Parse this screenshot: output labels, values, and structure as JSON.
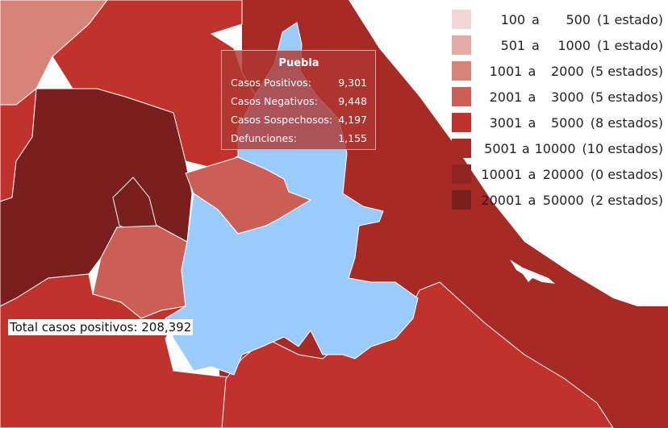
{
  "legend": [
    {
      "lo": "100",
      "hi": "500",
      "count": "(1 estado)",
      "color": "#f2d6d5"
    },
    {
      "lo": "501",
      "hi": "1000",
      "count": "(1 estado)",
      "color": "#e4aaa6"
    },
    {
      "lo": "1001",
      "hi": "2000",
      "count": "(5 estados)",
      "color": "#d88378"
    },
    {
      "lo": "2001",
      "hi": "3000",
      "count": "(5 estados)",
      "color": "#cc5f55"
    },
    {
      "lo": "3001",
      "hi": "5000",
      "count": "(8 estados)",
      "color": "#c1322c"
    },
    {
      "lo": "5001",
      "hi": "10000",
      "count": "(10 estados)",
      "color": "#a82a25"
    },
    {
      "lo": "10001",
      "hi": "20000",
      "count": "(0 estados)",
      "color": "#8f2420"
    },
    {
      "lo": "20001",
      "hi": "50000",
      "count": "(2 estados)",
      "color": "#7a1f1d"
    }
  ],
  "legend_connector": "a",
  "tooltip": {
    "title": "Puebla",
    "rows": [
      {
        "label": "Casos Positivos:",
        "value": "9,301"
      },
      {
        "label": "Casos Negativos:",
        "value": "9,448"
      },
      {
        "label": "Casos Sospechosos:",
        "value": "4,197"
      },
      {
        "label": "Defunciones:",
        "value": "1,155"
      }
    ]
  },
  "total": "Total casos positivos: 208,392",
  "colors": {
    "highlight": "#99cbfd",
    "border": "#ffffff"
  }
}
